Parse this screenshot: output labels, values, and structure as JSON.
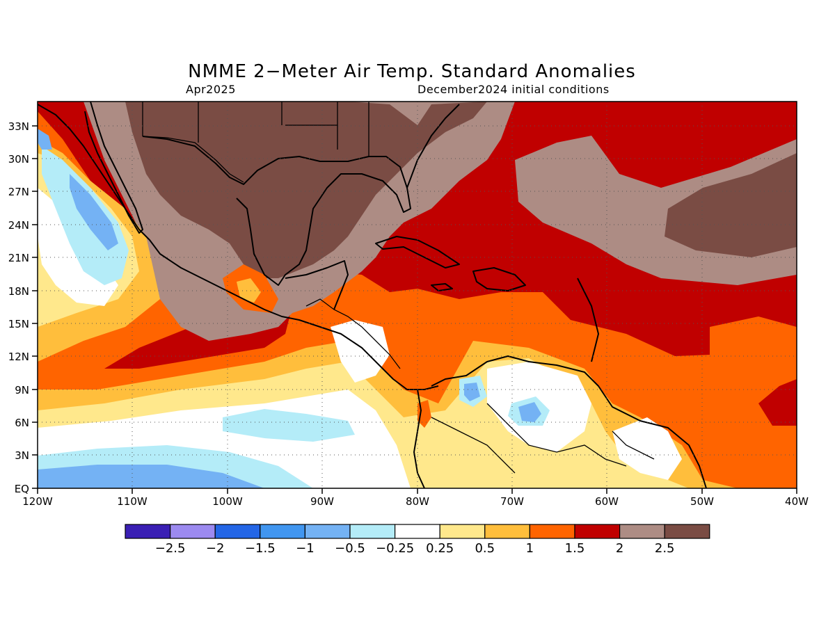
{
  "title": "NMME 2−Meter Air Temp. Standard Anomalies",
  "subtitle_left": "Apr2025",
  "subtitle_right": "December2024 initial conditions",
  "lat_labels": [
    "EQ",
    "3N",
    "6N",
    "9N",
    "12N",
    "15N",
    "18N",
    "21N",
    "24N",
    "27N",
    "30N",
    "33N"
  ],
  "lon_labels": [
    "120W",
    "110W",
    "100W",
    "90W",
    "80W",
    "70W",
    "60W",
    "50W",
    "40W"
  ],
  "colorbar": {
    "colors": [
      "#3a1fb4",
      "#9c8af0",
      "#2466e6",
      "#4196f0",
      "#74b2f4",
      "#b4ecf8",
      "#ffffff",
      "#ffe88c",
      "#ffbe3c",
      "#ff6400",
      "#c00000",
      "#ad8c84",
      "#7a4c44"
    ],
    "labels": [
      "−2.5",
      "−2",
      "−1.5",
      "−1",
      "−0.5",
      "−0.25",
      "0.25",
      "0.5",
      "1",
      "1.5",
      "2",
      "2.5"
    ]
  },
  "legend_colors": {
    "dark_brown": "#7a4c44",
    "light_brown": "#ad8c84",
    "dark_red": "#c00000",
    "orange_red": "#ff6400",
    "orange": "#ffbe3c",
    "light_yellow": "#ffe88c",
    "white": "#ffffff",
    "light_cyan": "#b4ecf8",
    "light_blue": "#74b2f4",
    "blue": "#4196f0"
  }
}
